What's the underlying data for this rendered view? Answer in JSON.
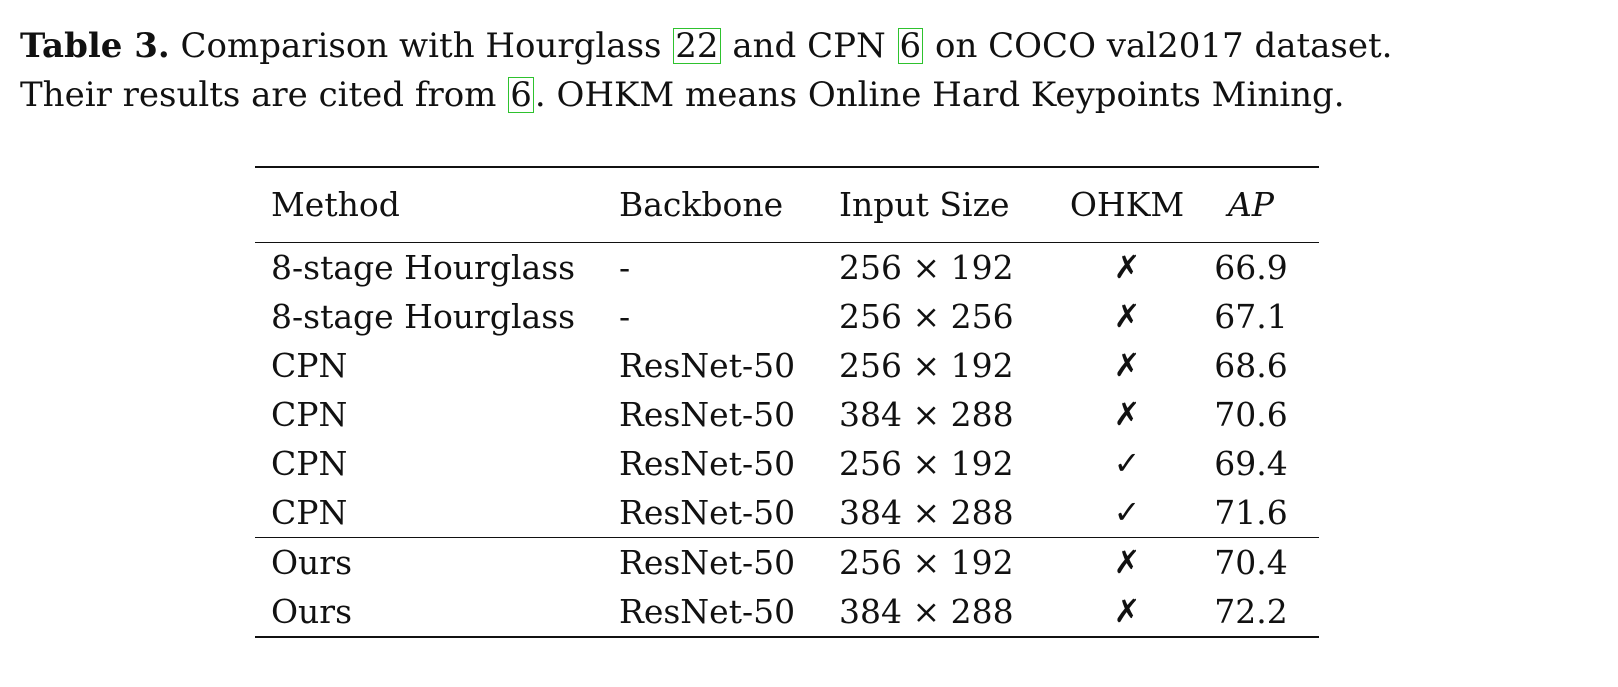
{
  "caption": {
    "label": "Table 3.",
    "text_1": " Comparison with Hourglass ",
    "cite_1": "22",
    "text_2": " and CPN ",
    "cite_2": "6",
    "text_3": " on COCO val2017 dataset.",
    "text_4": "Their results are cited from ",
    "cite_3": "6",
    "text_5": ". OHKM means Online Hard Keypoints Mining."
  },
  "table": {
    "headers": {
      "method": "Method",
      "backbone": "Backbone",
      "input_size": "Input Size",
      "ohkm": "OHKM",
      "ap": "AP"
    },
    "rows": [
      {
        "method": "8-stage Hourglass",
        "backbone": "-",
        "input_size": "256 × 192",
        "ohkm": "✗",
        "ap": "66.9"
      },
      {
        "method": "8-stage Hourglass",
        "backbone": "-",
        "input_size": "256 × 256",
        "ohkm": "✗",
        "ap": "67.1"
      },
      {
        "method": "CPN",
        "backbone": "ResNet-50",
        "input_size": "256 × 192",
        "ohkm": "✗",
        "ap": "68.6"
      },
      {
        "method": "CPN",
        "backbone": "ResNet-50",
        "input_size": "384 × 288",
        "ohkm": "✗",
        "ap": "70.6"
      },
      {
        "method": "CPN",
        "backbone": "ResNet-50",
        "input_size": "256 × 192",
        "ohkm": "✓",
        "ap": "69.4"
      },
      {
        "method": "CPN",
        "backbone": "ResNet-50",
        "input_size": "384 × 288",
        "ohkm": "✓",
        "ap": "71.6"
      },
      {
        "method": "Ours",
        "backbone": "ResNet-50",
        "input_size": "256 × 192",
        "ohkm": "✗",
        "ap": "70.4"
      },
      {
        "method": "Ours",
        "backbone": "ResNet-50",
        "input_size": "384 × 288",
        "ohkm": "✗",
        "ap": "72.2"
      }
    ]
  },
  "colors": {
    "citation_box": "#2ec22e",
    "text": "#111111"
  }
}
